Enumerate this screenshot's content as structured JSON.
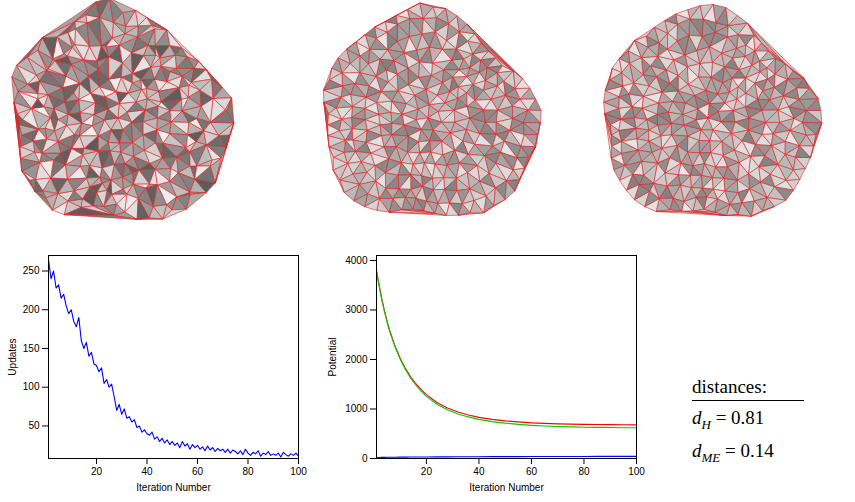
{
  "chart_data": [
    {
      "type": "line",
      "x_label": "Iteration Number",
      "y_label": "Updates",
      "color": "#0000ff",
      "x": [
        1,
        2,
        3,
        4,
        5,
        6,
        7,
        8,
        9,
        10,
        11,
        12,
        13,
        14,
        15,
        16,
        17,
        18,
        19,
        20,
        21,
        22,
        23,
        24,
        25,
        26,
        27,
        28,
        29,
        30,
        31,
        32,
        33,
        34,
        35,
        36,
        37,
        38,
        39,
        40,
        41,
        42,
        43,
        44,
        45,
        46,
        47,
        48,
        49,
        50,
        51,
        52,
        53,
        54,
        55,
        56,
        57,
        58,
        59,
        60,
        61,
        62,
        63,
        64,
        65,
        66,
        67,
        68,
        69,
        70,
        71,
        72,
        73,
        74,
        75,
        76,
        77,
        78,
        79,
        80,
        81,
        82,
        83,
        84,
        85,
        86,
        87,
        88,
        89,
        90,
        91,
        92,
        93,
        94,
        95,
        96,
        97,
        98,
        99,
        100
      ],
      "values": [
        265,
        240,
        250,
        228,
        232,
        215,
        220,
        205,
        195,
        200,
        185,
        178,
        190,
        160,
        150,
        158,
        140,
        145,
        130,
        128,
        120,
        125,
        105,
        110,
        100,
        104,
        88,
        70,
        78,
        65,
        72,
        60,
        62,
        55,
        58,
        48,
        50,
        42,
        45,
        40,
        38,
        42,
        33,
        36,
        30,
        34,
        28,
        32,
        26,
        30,
        25,
        28,
        22,
        30,
        24,
        27,
        20,
        26,
        22,
        25,
        20,
        23,
        18,
        24,
        19,
        22,
        17,
        21,
        18,
        20,
        16,
        20,
        15,
        19,
        17,
        14,
        18,
        13,
        20,
        15,
        12,
        16,
        14,
        18,
        11,
        15,
        13,
        17,
        12,
        14,
        12,
        15,
        10,
        16,
        13,
        11,
        14,
        12,
        15,
        11
      ],
      "xlim": [
        1,
        100
      ],
      "xticks": [
        20,
        40,
        60,
        80,
        100
      ],
      "ylim": [
        8,
        270
      ],
      "yticks": [
        50,
        100,
        150,
        200,
        250
      ],
      "grid": false
    },
    {
      "type": "line",
      "x_label": "Iteration Number",
      "y_label": "Potential",
      "x": [
        1,
        2,
        3,
        4,
        5,
        6,
        8,
        10,
        12,
        14,
        16,
        18,
        20,
        24,
        28,
        32,
        36,
        40,
        45,
        50,
        55,
        60,
        65,
        70,
        75,
        80,
        85,
        90,
        95,
        100
      ],
      "series": [
        {
          "color": "#ff0000",
          "values": [
            3800,
            3500,
            3230,
            2990,
            2780,
            2590,
            2280,
            2030,
            1820,
            1650,
            1510,
            1390,
            1290,
            1130,
            1020,
            940,
            880,
            830,
            790,
            760,
            740,
            720,
            710,
            700,
            695,
            690,
            688,
            685,
            682,
            680
          ]
        },
        {
          "color": "#00cc00",
          "values": [
            3780,
            3480,
            3210,
            2970,
            2760,
            2570,
            2260,
            2010,
            1800,
            1620,
            1480,
            1360,
            1255,
            1095,
            985,
            900,
            840,
            790,
            745,
            715,
            690,
            670,
            655,
            645,
            638,
            632,
            628,
            625,
            622,
            620
          ]
        },
        {
          "color": "#0000ff",
          "values": [
            20,
            21,
            22,
            23,
            24,
            25,
            26,
            27,
            28,
            29,
            30,
            30,
            31,
            32,
            33,
            34,
            35,
            36,
            37,
            38,
            38,
            39,
            40,
            40,
            41,
            41,
            42,
            42,
            43,
            43
          ]
        }
      ],
      "xlim": [
        1,
        100
      ],
      "xticks": [
        20,
        40,
        60,
        80,
        100
      ],
      "ylim": [
        0,
        4100
      ],
      "yticks": [
        0,
        1000,
        2000,
        3000,
        4000
      ],
      "grid": false
    }
  ],
  "annotation": {
    "title": "distances:",
    "items": [
      {
        "symbol": "d",
        "subscript": "H",
        "sign": "=",
        "value": 0.81
      },
      {
        "symbol": "d",
        "subscript": "ME",
        "sign": "=",
        "value": 0.14
      }
    ]
  }
}
